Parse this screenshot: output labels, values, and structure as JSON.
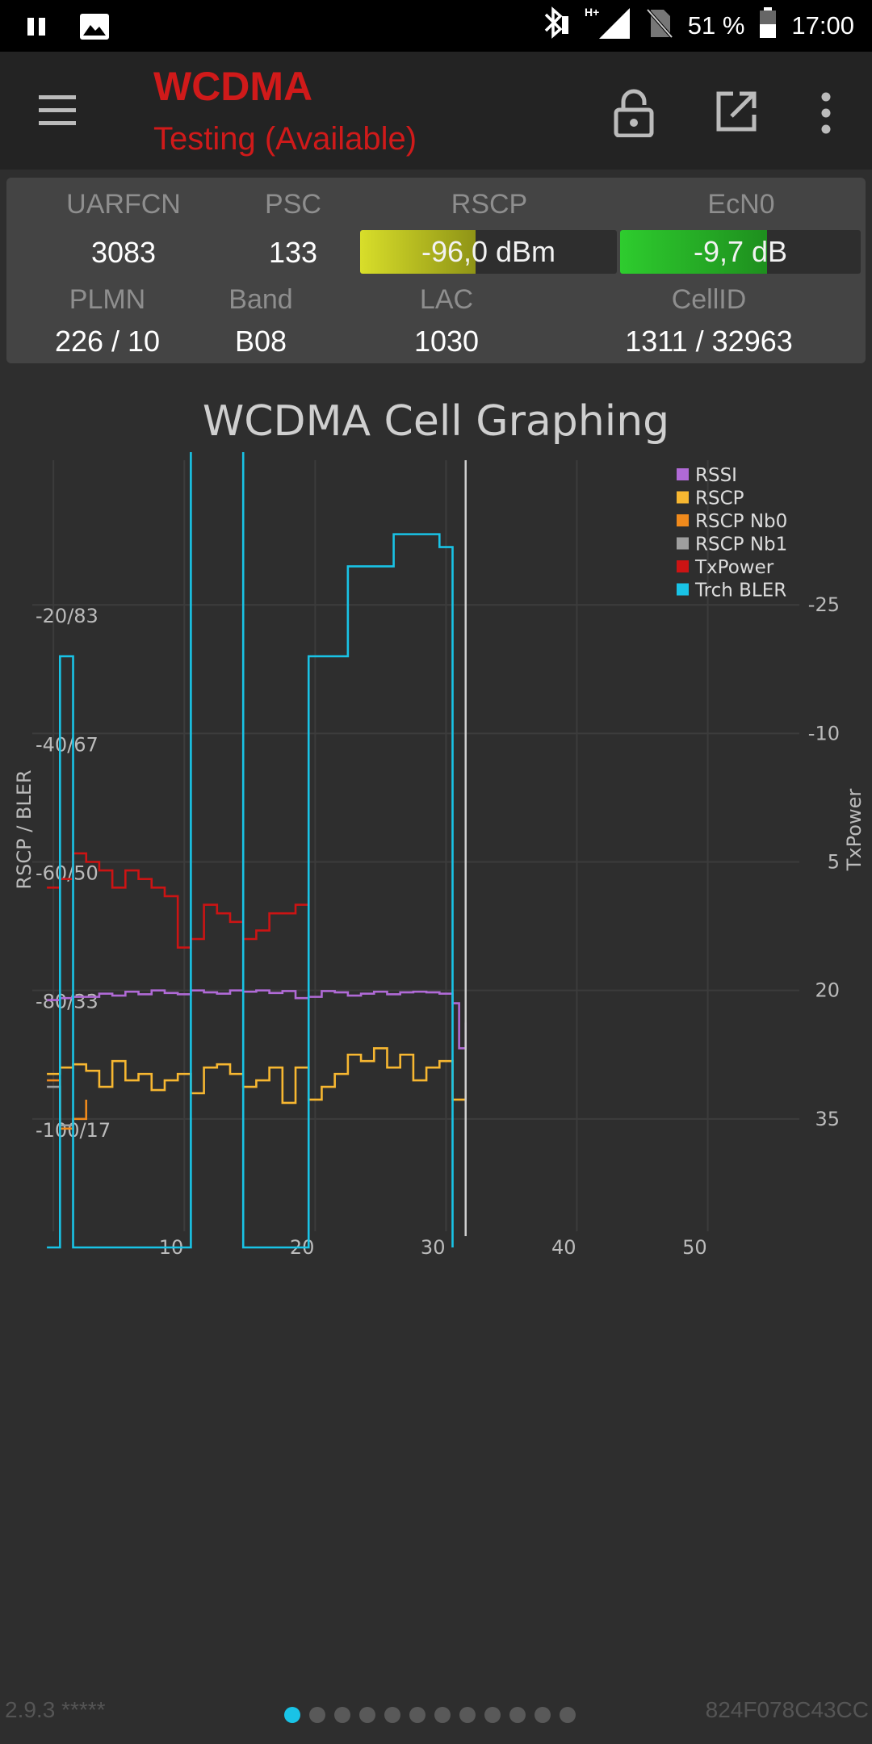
{
  "status_bar": {
    "battery": "51 %",
    "time": "17:00",
    "network": "H+"
  },
  "app_bar": {
    "title": "WCDMA",
    "subtitle": "Testing (Available)"
  },
  "info": {
    "uarfcn_label": "UARFCN",
    "uarfcn": "3083",
    "psc_label": "PSC",
    "psc": "133",
    "rscp_label": "RSCP",
    "rscp": "-96,0 dBm",
    "rscp_fill": 0.45,
    "ecn0_label": "EcN0",
    "ecn0": "-9,7 dB",
    "ecn0_fill": 0.61,
    "plmn_label": "PLMN",
    "plmn": "226 / 10",
    "band_label": "Band",
    "band": "B08",
    "lac_label": "LAC",
    "lac": "1030",
    "cellid_label": "CellID",
    "cellid": "1311 / 32963"
  },
  "colors": {
    "rssi": "#b06ad6",
    "rscp": "#f7b731",
    "rscp_nb0": "#f08a1c",
    "rscp_nb1": "#9e9e9e",
    "txpower": "#cc1414",
    "bler": "#19c3e6",
    "rscp_bar": "#d8de2a",
    "ecn0_bar": "#2ecc2e"
  },
  "chart_data": {
    "type": "line",
    "title": "WCDMA Cell Graphing",
    "ylabel_left": "RSCP / BLER",
    "ylabel_right": "TxPower",
    "x_ticks": [
      "10",
      "20",
      "30",
      "40",
      "50"
    ],
    "xlim": [
      0,
      58
    ],
    "y_left_ticks": [
      "-20/83",
      "-40/67",
      "-60/50",
      "-80/33",
      "-100/17"
    ],
    "y_left_values": [
      -20,
      -40,
      -60,
      -80,
      -100
    ],
    "ylim_left": [
      -120,
      0
    ],
    "y_right_ticks": [
      "-25",
      "-10",
      "5",
      "20",
      "35"
    ],
    "y_right_values": [
      -25,
      -10,
      5,
      20,
      35
    ],
    "ylim_right": [
      50,
      -40
    ],
    "cursor_x": 32,
    "legend": [
      "RSSI",
      "RSCP",
      "RSCP Nb0",
      "RSCP Nb1",
      "TxPower",
      "Trch BLER"
    ],
    "series": [
      {
        "name": "RSSI",
        "axis": "left",
        "x": [
          0,
          1,
          2,
          3,
          4,
          5,
          6,
          7,
          8,
          9,
          10,
          11,
          12,
          13,
          14,
          15,
          16,
          17,
          18,
          19,
          20,
          21,
          22,
          23,
          24,
          25,
          26,
          27,
          28,
          29,
          30,
          31,
          31.5,
          32
        ],
        "y": [
          -81.5,
          -81.2,
          -81,
          -81,
          -80.5,
          -80.8,
          -80.2,
          -80.6,
          -80,
          -80.4,
          -80.6,
          -80,
          -80.3,
          -80.5,
          -80,
          -80.2,
          -80,
          -80.4,
          -80.1,
          -81.2,
          -81,
          -80.1,
          -80.3,
          -80.8,
          -80.5,
          -80.2,
          -80.6,
          -80.3,
          -80.2,
          -80.3,
          -80.5,
          -82,
          -89,
          -85
        ]
      },
      {
        "name": "RSCP",
        "axis": "left",
        "x": [
          0,
          1,
          2,
          3,
          4,
          5,
          6,
          7,
          8,
          9,
          10,
          11,
          12,
          13,
          14,
          15,
          16,
          17,
          18,
          19,
          20,
          21,
          22,
          23,
          24,
          25,
          26,
          27,
          28,
          29,
          30,
          31,
          32
        ],
        "y": [
          -93,
          -92,
          -91.5,
          -92.5,
          -95,
          -91,
          -94,
          -93,
          -95.5,
          -94,
          -93,
          -96,
          -92,
          -91.5,
          -93,
          -95,
          -94,
          -92,
          -97.5,
          -92,
          -97,
          -95,
          -93,
          -90,
          -91,
          -89,
          -92,
          -90,
          -94,
          -92,
          -91,
          -97,
          -95.5
        ]
      },
      {
        "name": "RSCP Nb0",
        "axis": "left",
        "x": [
          0,
          1,
          2,
          3
        ],
        "y": [
          -94,
          -101.5,
          -100,
          -97
        ]
      },
      {
        "name": "RSCP Nb1",
        "axis": "left",
        "x": [
          0,
          1,
          2
        ],
        "y": [
          -95,
          -101,
          -100
        ]
      },
      {
        "name": "TxPower",
        "axis": "right",
        "x": [
          0,
          1,
          2,
          3,
          4,
          5,
          6,
          7,
          8,
          9,
          10,
          11,
          12,
          13,
          14,
          15,
          16,
          17,
          18,
          19,
          20
        ],
        "y": [
          8,
          7,
          4,
          5,
          6,
          8,
          6,
          7,
          8,
          9,
          15,
          14,
          10,
          11,
          12,
          14,
          13,
          11,
          11,
          10,
          9
        ]
      },
      {
        "name": "Trch BLER",
        "axis": "left",
        "x": [
          0,
          0.5,
          1,
          2,
          10,
          10.8,
          11,
          15,
          18.5,
          19,
          20,
          21,
          23,
          25,
          26.5,
          28,
          30,
          31
        ],
        "y": [
          -120,
          -120,
          -28,
          -120,
          -120,
          -120,
          4,
          -120,
          -120,
          -120,
          -28,
          -28,
          -14,
          -14,
          -9,
          -9,
          -11,
          -120
        ]
      }
    ]
  },
  "footer": {
    "version": "2.9.3 *****",
    "device_id": "824F078C43CC",
    "pages": 12,
    "active_page": 0
  }
}
